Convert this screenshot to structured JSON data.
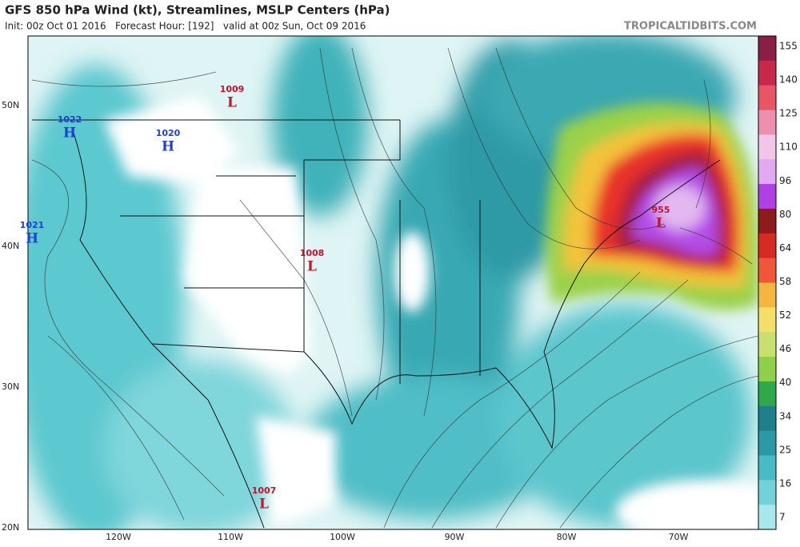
{
  "header": {
    "title": "GFS 850 hPa Wind (kt), Streamlines, MSLP Centers (hPa)",
    "subtitle": "Init: 00z Oct 01 2016   Forecast Hour: [192]   valid at 00z Sun, Oct 09 2016",
    "source": "TROPICALTIDBITS.COM"
  },
  "colorbar": {
    "labels": [
      "155",
      "140",
      "125",
      "110",
      "96",
      "80",
      "64",
      "58",
      "52",
      "46",
      "40",
      "34",
      "25",
      "16",
      "7"
    ]
  },
  "lat_labels": [
    "50N",
    "40N",
    "30N",
    "20N"
  ],
  "lon_labels": [
    "120W",
    "110W",
    "100W",
    "90W",
    "80W",
    "70W"
  ],
  "centers": [
    {
      "type": "H",
      "value": "1022"
    },
    {
      "type": "H",
      "value": "1020"
    },
    {
      "type": "L",
      "value": "1009"
    },
    {
      "type": "H",
      "value": "1021"
    },
    {
      "type": "L",
      "value": "1008"
    },
    {
      "type": "L",
      "value": "955"
    },
    {
      "type": "L",
      "value": "1007"
    }
  ]
}
